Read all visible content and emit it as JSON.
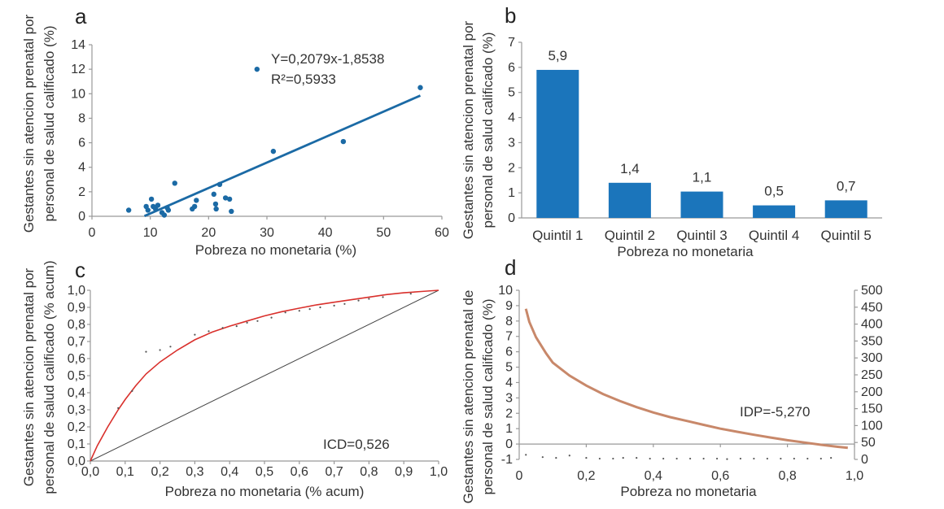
{
  "chart_data": [
    {
      "panel": "a",
      "type": "scatter",
      "xlabel": "Pobreza no monetaria (%)",
      "ylabel": [
        "Gestantes sin atencion prenatal por",
        "personal de salud calificado (%)"
      ],
      "xlim": [
        0,
        60
      ],
      "ylim": [
        0,
        14
      ],
      "xticks": [
        "0",
        "10",
        "20",
        "30",
        "40",
        "50",
        "60"
      ],
      "yticks": [
        "0",
        "2",
        "4",
        "6",
        "8",
        "10",
        "12",
        "14"
      ],
      "points": [
        [
          6.3,
          0.5
        ],
        [
          9.3,
          0.8
        ],
        [
          9.6,
          0.5
        ],
        [
          10.2,
          1.4
        ],
        [
          10.5,
          0.8
        ],
        [
          10.9,
          0.6
        ],
        [
          11.3,
          0.9
        ],
        [
          12.0,
          0.3
        ],
        [
          12.4,
          0.1
        ],
        [
          12.9,
          0.7
        ],
        [
          13.1,
          0.5
        ],
        [
          14.2,
          2.7
        ],
        [
          17.2,
          0.6
        ],
        [
          17.6,
          0.8
        ],
        [
          17.9,
          1.3
        ],
        [
          20.9,
          1.8
        ],
        [
          21.2,
          1.0
        ],
        [
          21.3,
          0.6
        ],
        [
          21.9,
          2.6
        ],
        [
          22.9,
          1.5
        ],
        [
          23.6,
          1.4
        ],
        [
          23.9,
          0.4
        ],
        [
          28.3,
          12.0
        ],
        [
          31.1,
          5.3
        ],
        [
          43.1,
          6.1
        ],
        [
          56.3,
          10.5
        ]
      ],
      "trendline": {
        "x": [
          9.0,
          56.3
        ],
        "y": [
          0.02,
          9.85
        ]
      },
      "annotations": [
        "Y=0,2079x-1,8538",
        "R²=0,5933"
      ]
    },
    {
      "panel": "b",
      "type": "bar",
      "xlabel": "Pobreza no monetaria",
      "ylabel": [
        "Gestantes sin atencion prenatal por",
        "personal de salud calificado (%)"
      ],
      "ylim": [
        0,
        7
      ],
      "yticks": [
        "0",
        "1",
        "2",
        "3",
        "4",
        "5",
        "6",
        "7"
      ],
      "categories": [
        "Quintil 1",
        "Quintil 2",
        "Quintil 3",
        "Quintil 4",
        "Quintil 5"
      ],
      "values": [
        5.9,
        1.4,
        1.05,
        0.5,
        0.7
      ],
      "value_labels": [
        "5,9",
        "1,4",
        "1,1",
        "0,5",
        "0,7"
      ],
      "color": "#1b75bb"
    },
    {
      "panel": "c",
      "type": "line",
      "xlabel": "Pobreza no monetaria (% acum)",
      "ylabel": [
        "Gestantes sin atencion prenatal por",
        "personal de salud calificado (% acum)"
      ],
      "xlim": [
        0,
        1
      ],
      "ylim": [
        0,
        1
      ],
      "xticks": [
        "0,0",
        "0,1",
        "0,2",
        "0,3",
        "0,4",
        "0,5",
        "0,6",
        "0,7",
        "0,8",
        "0,9",
        "1,0"
      ],
      "yticks": [
        "0,0",
        "0,1",
        "0,2",
        "0,3",
        "0,4",
        "0,5",
        "0,6",
        "0,7",
        "0,8",
        "0,9",
        "1,0"
      ],
      "curve_color": "#d9302c",
      "curve": {
        "x": [
          0,
          0.02,
          0.05,
          0.08,
          0.1,
          0.13,
          0.16,
          0.2,
          0.25,
          0.3,
          0.35,
          0.4,
          0.45,
          0.5,
          0.55,
          0.6,
          0.65,
          0.7,
          0.75,
          0.8,
          0.85,
          0.9,
          0.95,
          1.0
        ],
        "y": [
          0,
          0.09,
          0.2,
          0.3,
          0.36,
          0.44,
          0.51,
          0.58,
          0.65,
          0.71,
          0.755,
          0.79,
          0.82,
          0.85,
          0.875,
          0.895,
          0.915,
          0.93,
          0.945,
          0.96,
          0.975,
          0.985,
          0.993,
          1.0
        ]
      },
      "points": [
        [
          0.08,
          0.31
        ],
        [
          0.12,
          0.41
        ],
        [
          0.16,
          0.64
        ],
        [
          0.2,
          0.65
        ],
        [
          0.23,
          0.67
        ],
        [
          0.3,
          0.74
        ],
        [
          0.34,
          0.76
        ],
        [
          0.38,
          0.78
        ],
        [
          0.42,
          0.79
        ],
        [
          0.45,
          0.81
        ],
        [
          0.48,
          0.82
        ],
        [
          0.52,
          0.84
        ],
        [
          0.56,
          0.87
        ],
        [
          0.6,
          0.88
        ],
        [
          0.63,
          0.89
        ],
        [
          0.66,
          0.9
        ],
        [
          0.7,
          0.91
        ],
        [
          0.73,
          0.92
        ],
        [
          0.77,
          0.94
        ],
        [
          0.8,
          0.95
        ],
        [
          0.84,
          0.96
        ],
        [
          0.92,
          0.98
        ]
      ],
      "annotation": "ICD=0,526"
    },
    {
      "panel": "d",
      "type": "line",
      "xlabel": "Pobreza no monetaria",
      "ylabel": [
        "Gestantes sin atencion prenatal de",
        "personal de salud calificado (%)"
      ],
      "xlim": [
        0,
        1
      ],
      "ylim": [
        -1,
        10
      ],
      "y2lim": [
        0,
        500
      ],
      "xticks": [
        "0",
        "0,2",
        "0,4",
        "0,6",
        "0,8",
        "1,0"
      ],
      "yticks": [
        "-1",
        "0",
        "1",
        "2",
        "3",
        "4",
        "5",
        "6",
        "7",
        "8",
        "9",
        "10"
      ],
      "y2ticks": [
        "0",
        "50",
        "100",
        "150",
        "200",
        "250",
        "300",
        "350",
        "400",
        "450",
        "500"
      ],
      "curve_color": "#c8886a",
      "curve": {
        "x": [
          0.02,
          0.03,
          0.05,
          0.08,
          0.1,
          0.15,
          0.2,
          0.25,
          0.3,
          0.35,
          0.4,
          0.45,
          0.5,
          0.55,
          0.6,
          0.65,
          0.7,
          0.75,
          0.8,
          0.85,
          0.9,
          0.95,
          0.98
        ],
        "y": [
          8.8,
          7.95,
          6.95,
          5.9,
          5.3,
          4.45,
          3.8,
          3.25,
          2.8,
          2.4,
          2.05,
          1.75,
          1.5,
          1.25,
          1.0,
          0.8,
          0.6,
          0.42,
          0.25,
          0.1,
          -0.05,
          -0.18,
          -0.25
        ]
      },
      "points": [
        [
          0.02,
          -0.7
        ],
        [
          0.07,
          -0.85
        ],
        [
          0.11,
          -0.9
        ],
        [
          0.15,
          -0.75
        ],
        [
          0.2,
          -0.9
        ],
        [
          0.24,
          -0.95
        ],
        [
          0.28,
          -0.95
        ],
        [
          0.31,
          -0.9
        ],
        [
          0.35,
          -0.9
        ],
        [
          0.39,
          -0.95
        ],
        [
          0.43,
          -0.95
        ],
        [
          0.47,
          -0.95
        ],
        [
          0.51,
          -0.95
        ],
        [
          0.55,
          -0.95
        ],
        [
          0.59,
          -0.95
        ],
        [
          0.62,
          -0.98
        ],
        [
          0.66,
          -0.95
        ],
        [
          0.7,
          -0.95
        ],
        [
          0.74,
          -0.95
        ],
        [
          0.78,
          -0.95
        ],
        [
          0.82,
          -0.95
        ],
        [
          0.86,
          -0.95
        ],
        [
          0.9,
          -0.95
        ],
        [
          0.93,
          -0.9
        ]
      ],
      "annotation": "IDP=-5,270"
    }
  ]
}
